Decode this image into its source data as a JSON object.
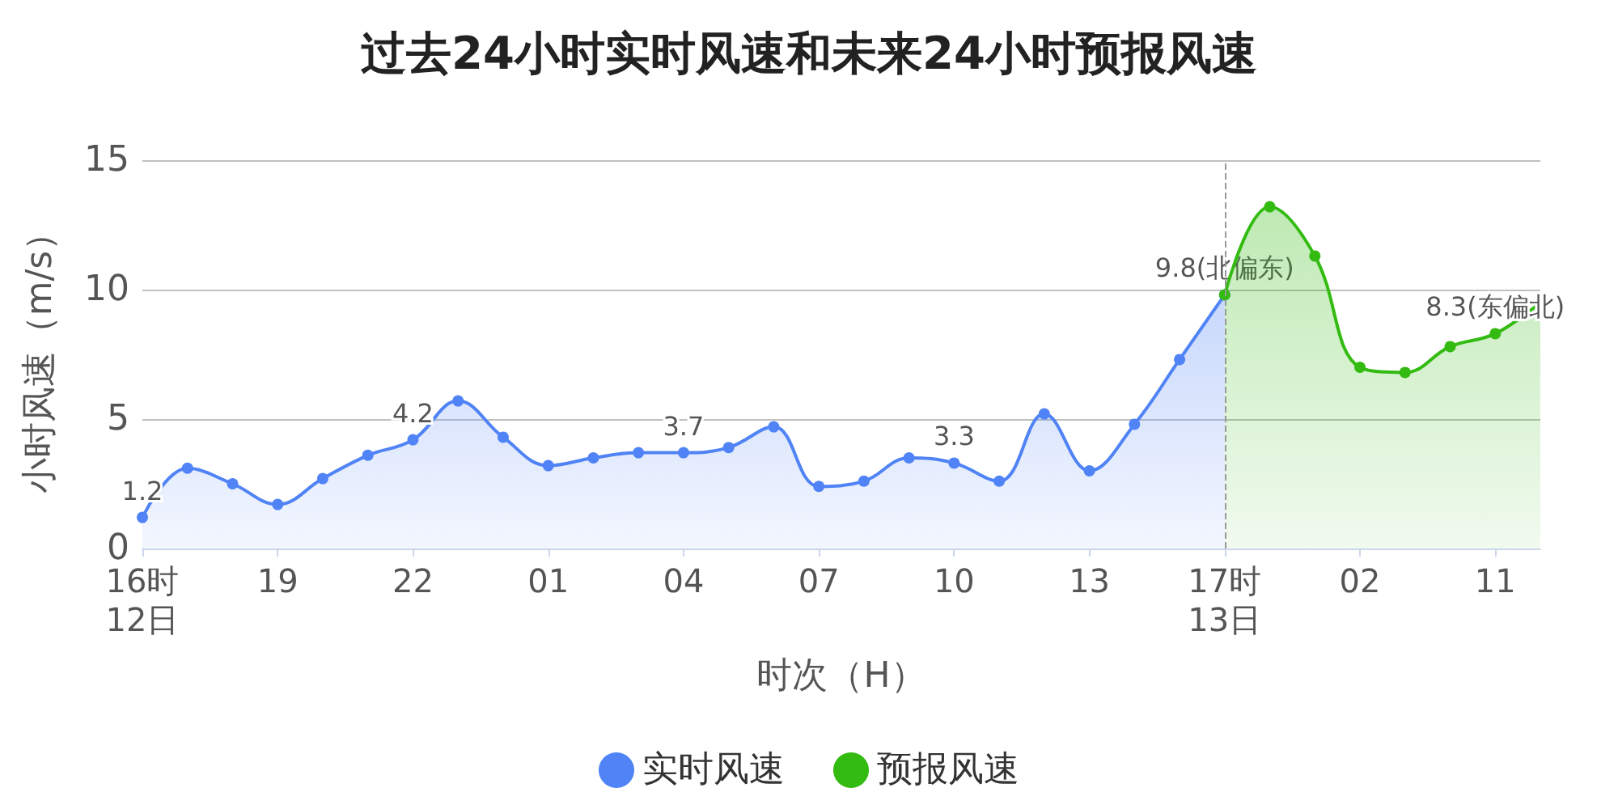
{
  "chart_data": {
    "type": "area",
    "title": "过去24小时实时风速和未来24小时预报风速",
    "xlabel": "时次（H）",
    "ylabel": "小时风速（m/s）",
    "categories": [
      "16时\n12日",
      null,
      null,
      "19",
      null,
      null,
      "22",
      null,
      null,
      "01",
      null,
      null,
      "04",
      null,
      null,
      "07",
      null,
      null,
      "10",
      null,
      null,
      "13",
      null,
      null,
      "17时\n13日",
      null,
      null,
      "02",
      null,
      null,
      "11",
      null
    ],
    "series": [
      {
        "name": "实时风速",
        "color": "#5083f5",
        "values": [
          1.2,
          3.1,
          2.5,
          1.7,
          2.7,
          3.6,
          4.2,
          5.7,
          4.3,
          3.2,
          3.5,
          3.7,
          3.7,
          3.9,
          4.7,
          2.4,
          2.6,
          3.5,
          3.3,
          2.6,
          5.2,
          3.0,
          4.8,
          7.3,
          9.8,
          null,
          null,
          null,
          null,
          null,
          null,
          null
        ],
        "value_labels": [
          "1.2",
          null,
          null,
          null,
          null,
          null,
          "4.2",
          null,
          null,
          null,
          null,
          null,
          "3.7",
          null,
          null,
          null,
          null,
          null,
          "3.3",
          null,
          null,
          null,
          null,
          null,
          "9.8(北偏东)",
          null,
          null,
          null,
          null,
          null,
          null,
          null
        ]
      },
      {
        "name": "预报风速",
        "color": "#33bb11",
        "values": [
          null,
          null,
          null,
          null,
          null,
          null,
          null,
          null,
          null,
          null,
          null,
          null,
          null,
          null,
          null,
          null,
          null,
          null,
          null,
          null,
          null,
          null,
          null,
          null,
          9.8,
          13.2,
          11.3,
          7.0,
          6.8,
          7.8,
          8.3,
          9.5
        ],
        "value_labels": [
          null,
          null,
          null,
          null,
          null,
          null,
          null,
          null,
          null,
          null,
          null,
          null,
          null,
          null,
          null,
          null,
          null,
          null,
          null,
          null,
          null,
          null,
          null,
          null,
          null,
          null,
          null,
          null,
          null,
          null,
          "8.3(东偏北)",
          null
        ]
      }
    ],
    "ref_lines": [
      {
        "axis": "x",
        "value": "17时\n13日",
        "color": "#999999",
        "line_style": "dashed"
      }
    ],
    "ylim": [
      0,
      15
    ],
    "yticks": [
      0,
      5,
      10,
      15
    ],
    "grid": "y",
    "legend": "bottom",
    "marker": "circle",
    "line_style": "solid"
  }
}
